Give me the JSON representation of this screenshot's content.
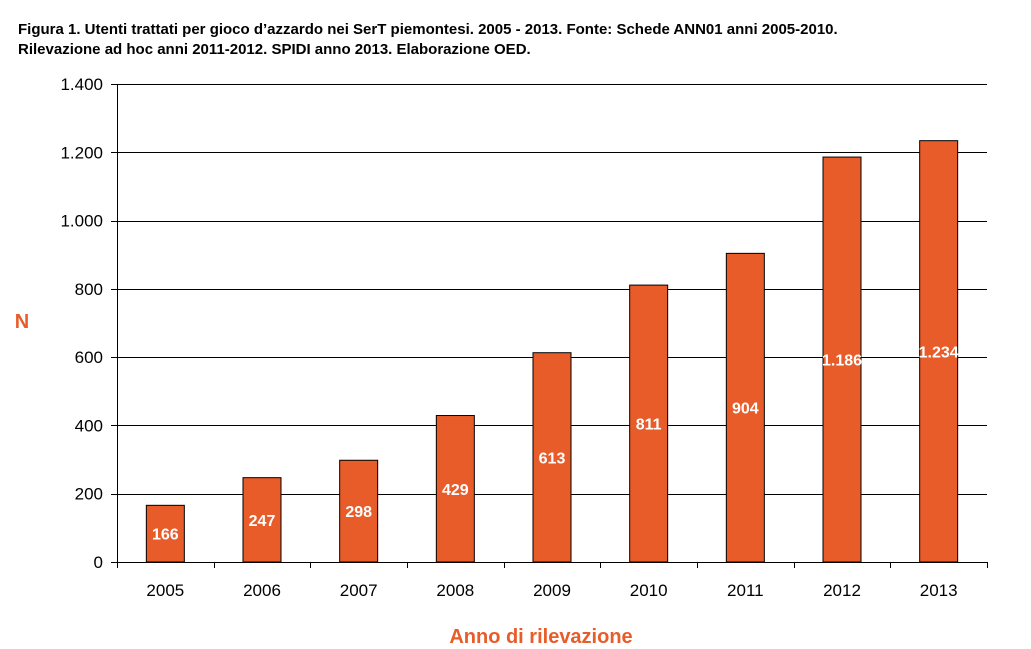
{
  "chart_data": {
    "type": "bar",
    "title_lines": [
      "Figura 1. Utenti trattati per gioco d’azzardo nei SerT piemontesi. 2005 - 2013. Fonte: Schede ANN01 anni 2005-2010.",
      "Rilevazione ad hoc anni 2011-2012. SPIDI anno 2013. Elaborazione OED."
    ],
    "xlabel": "Anno di rilevazione",
    "ylabel": "N",
    "categories": [
      "2005",
      "2006",
      "2007",
      "2008",
      "2009",
      "2010",
      "2011",
      "2012",
      "2013"
    ],
    "values": [
      166,
      247,
      298,
      429,
      613,
      811,
      904,
      1186,
      1234
    ],
    "data_labels": [
      "166",
      "247",
      "298",
      "429",
      "613",
      "811",
      "904",
      "1.186",
      "1.234"
    ],
    "ylim": [
      0,
      1400
    ],
    "y_ticks": [
      0,
      200,
      400,
      600,
      800,
      1000,
      1200,
      1400
    ],
    "y_tick_labels": [
      "0",
      "200",
      "400",
      "600",
      "800",
      "1.000",
      "1.200",
      "1.400"
    ],
    "grid": true,
    "legend": "none",
    "colors": {
      "bar_fill": "#E85C2A",
      "bar_stroke": "#000000",
      "axis_title": "#E85C2A",
      "grid": "#000000"
    }
  }
}
